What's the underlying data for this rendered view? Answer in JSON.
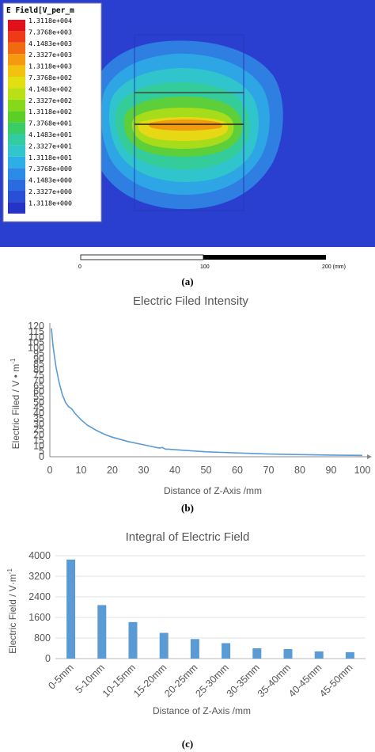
{
  "panel_a": {
    "legend_title": "E Field[V_per_m",
    "legend_labels": [
      "1.3118e+004",
      "7.3768e+003",
      "4.1483e+003",
      "2.3327e+003",
      "1.3118e+003",
      "7.3768e+002",
      "4.1483e+002",
      "2.3327e+002",
      "1.3118e+002",
      "7.3768e+001",
      "4.1483e+001",
      "2.3327e+001",
      "1.3118e+001",
      "7.3768e+000",
      "4.1483e+000",
      "2.3327e+000",
      "1.3118e+000"
    ],
    "legend_colors": [
      "#e0101c",
      "#ee3a16",
      "#f26a10",
      "#f59a0e",
      "#f2c20e",
      "#e2df10",
      "#b8e014",
      "#86d81a",
      "#5ccf26",
      "#3ccc66",
      "#32cca0",
      "#30c6cc",
      "#2eaee6",
      "#2a8ce6",
      "#2a6ce0",
      "#2a4ed6",
      "#2634c6"
    ],
    "scale_labels": [
      "0",
      "100",
      "200 (mm)"
    ],
    "caption": "(a)"
  },
  "chart_data": [
    {
      "type": "line",
      "title": "Electric Filed Intensity",
      "xlabel": "Distance of Z-Axis /mm",
      "ylabel": "Electric Filed / V • m",
      "ylabel_sup": "-1",
      "xlim": [
        0,
        100
      ],
      "ylim": [
        0,
        120
      ],
      "xticks": [
        0,
        10,
        20,
        30,
        40,
        50,
        60,
        70,
        80,
        90,
        100
      ],
      "yticks": [
        0,
        5,
        10,
        15,
        20,
        25,
        30,
        35,
        40,
        45,
        50,
        55,
        60,
        65,
        70,
        75,
        80,
        85,
        90,
        95,
        100,
        105,
        110,
        115,
        120
      ],
      "color": "#5b9bd5",
      "x": [
        0.5,
        1,
        1.5,
        2,
        3,
        4,
        5,
        6,
        7,
        8,
        10,
        12,
        15,
        18,
        20,
        25,
        30,
        35,
        36,
        37,
        38,
        40,
        45,
        50,
        55,
        60,
        70,
        80,
        90,
        100
      ],
      "y": [
        118,
        102,
        92,
        82,
        68,
        57,
        50,
        46,
        44,
        40,
        34,
        29,
        24,
        20,
        18,
        14,
        11,
        8,
        8.5,
        7,
        7,
        6.5,
        5.5,
        4.5,
        4,
        3.5,
        2.5,
        2,
        1.5,
        1.2
      ],
      "caption": "(b)"
    },
    {
      "type": "bar",
      "title": "Integral of Electric Field",
      "xlabel": "Distance of Z-Axis /mm",
      "ylabel": "Electric Field / V·m",
      "ylabel_sup": "-1",
      "ylim": [
        0,
        4000
      ],
      "yticks": [
        0,
        800,
        1600,
        2400,
        3200,
        4000
      ],
      "color": "#5b9bd5",
      "categories": [
        "0-5mm",
        "5-10mm",
        "10-15mm",
        "15-20mm",
        "20-25mm",
        "25-30mm",
        "30-35mm",
        "35-40mm",
        "40-45mm",
        "45-50mm"
      ],
      "values": [
        3850,
        2080,
        1420,
        1000,
        760,
        600,
        400,
        370,
        280,
        250
      ],
      "caption": "(c)"
    }
  ]
}
